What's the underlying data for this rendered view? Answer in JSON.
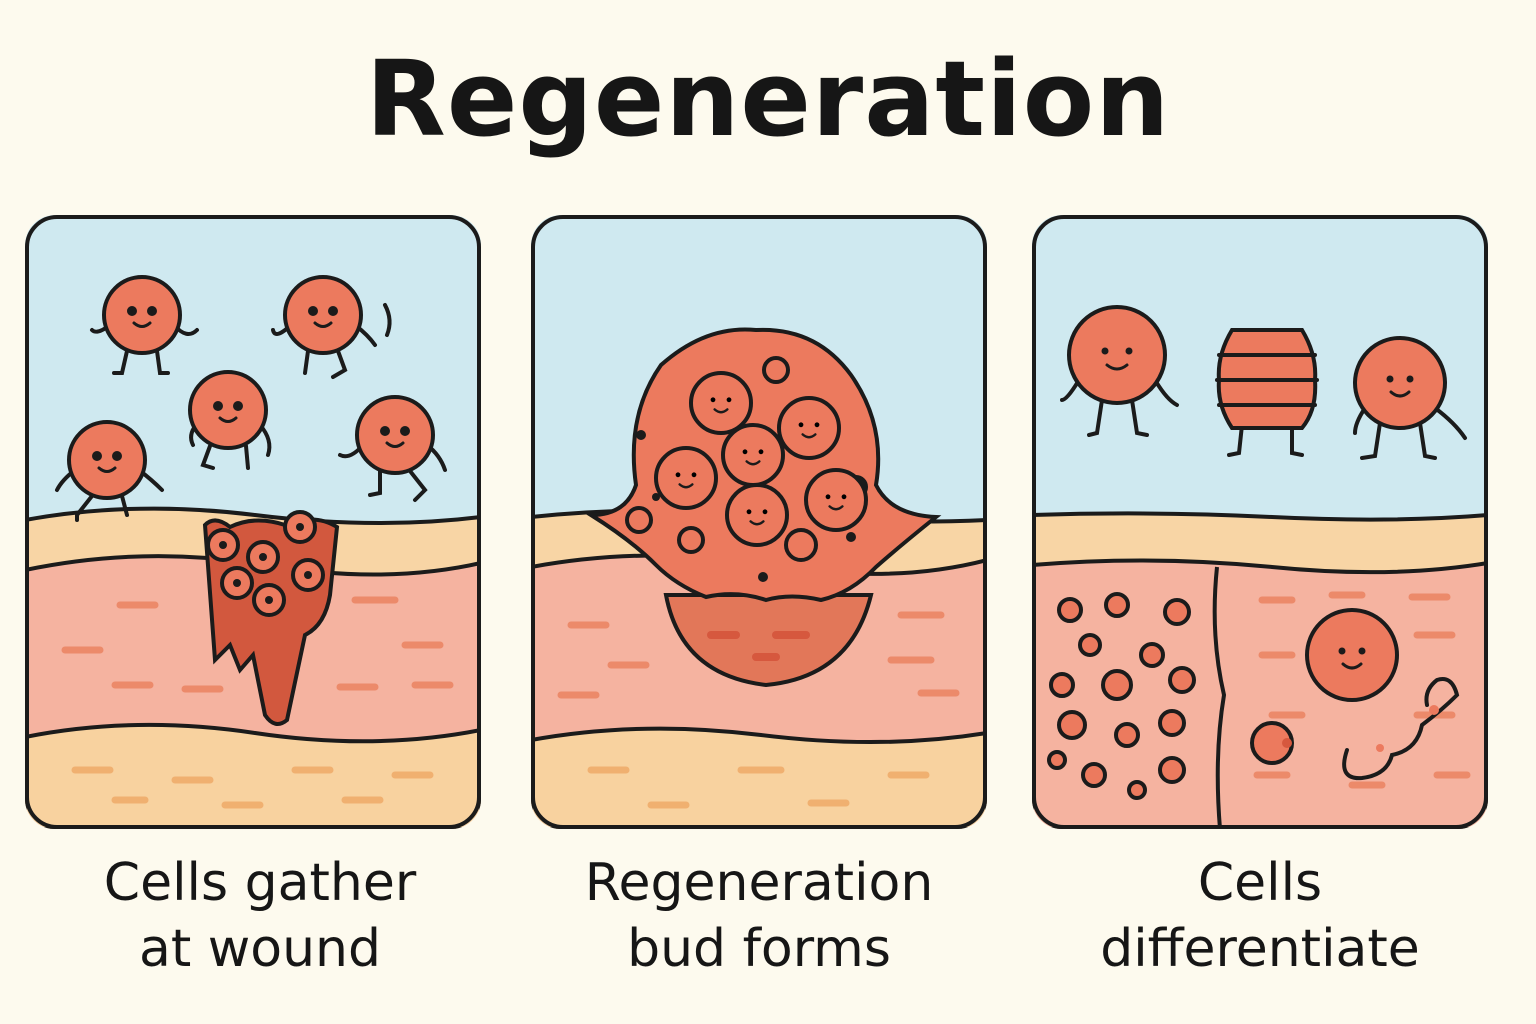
{
  "title": "Regeneration",
  "panels": [
    {
      "caption_line1": "Cells gather",
      "caption_line2": "at wound"
    },
    {
      "caption_line1": "Regeneration",
      "caption_line2": "bud forms"
    },
    {
      "caption_line1": "Cells",
      "caption_line2": "differentiate"
    }
  ],
  "colors": {
    "background": "#fdfaee",
    "water": "#cfe9f0",
    "epidermis": "#f8d5a5",
    "dermis": "#f5b3a0",
    "lower": "#f8d29f",
    "cell": "#ec7a5e",
    "wound": "#d2583e",
    "outline": "#1b1b1b"
  }
}
